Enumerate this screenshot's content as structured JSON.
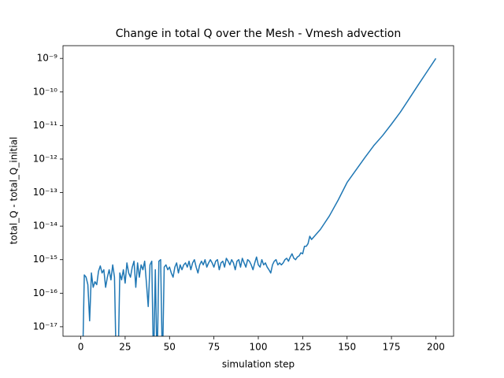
{
  "chart_data": {
    "type": "line",
    "title": "Change in total Q over the Mesh - Vmesh advection",
    "x_label": "simulation step",
    "y_label": "total_Q - total_Q_initial",
    "log_y": true,
    "grid": false,
    "xlim": [
      -10,
      210
    ],
    "xticks": [
      0,
      25,
      50,
      75,
      100,
      125,
      150,
      175,
      200
    ],
    "ylim": [
      5.2e-18,
      2.4e-09
    ],
    "yticks": [
      {
        "value": 1e-17,
        "label": "10⁻¹⁷"
      },
      {
        "value": 1e-16,
        "label": "10⁻¹⁶"
      },
      {
        "value": 1e-15,
        "label": "10⁻¹⁵"
      },
      {
        "value": 1e-14,
        "label": "10⁻¹⁴"
      },
      {
        "value": 1e-13,
        "label": "10⁻¹³"
      },
      {
        "value": 1e-12,
        "label": "10⁻¹²"
      },
      {
        "value": 1e-11,
        "label": "10⁻¹¹"
      },
      {
        "value": 1e-10,
        "label": "10⁻¹⁰"
      },
      {
        "value": 1e-09,
        "label": "10⁻⁹"
      }
    ],
    "x": [
      0,
      1,
      2,
      3,
      4,
      5,
      6,
      7,
      8,
      9,
      10,
      11,
      12,
      13,
      14,
      15,
      16,
      17,
      18,
      19,
      20,
      21,
      22,
      23,
      24,
      25,
      26,
      27,
      28,
      29,
      30,
      31,
      32,
      33,
      34,
      35,
      36,
      37,
      38,
      39,
      40,
      41,
      42,
      43,
      44,
      45,
      46,
      47,
      48,
      49,
      50,
      51,
      52,
      53,
      54,
      55,
      56,
      57,
      58,
      59,
      60,
      61,
      62,
      63,
      64,
      65,
      66,
      67,
      68,
      69,
      70,
      71,
      72,
      73,
      74,
      75,
      76,
      77,
      78,
      79,
      80,
      81,
      82,
      83,
      84,
      85,
      86,
      87,
      88,
      89,
      90,
      91,
      92,
      93,
      94,
      95,
      96,
      97,
      98,
      99,
      100,
      101,
      102,
      103,
      104,
      105,
      106,
      107,
      108,
      109,
      110,
      111,
      112,
      113,
      114,
      115,
      116,
      117,
      118,
      119,
      120,
      121,
      122,
      123,
      124,
      125,
      126,
      127,
      128,
      129,
      130,
      135,
      140,
      145,
      150,
      155,
      160,
      165,
      170,
      175,
      180,
      185,
      190,
      195,
      200
    ],
    "series": [
      {
        "color": "#1f77b4",
        "values": [
          0,
          0,
          3.5e-16,
          3e-16,
          1.8e-16,
          1.5e-17,
          4e-16,
          1.5e-16,
          2.2e-16,
          1.8e-16,
          4.5e-16,
          6.5e-16,
          4e-16,
          5e-16,
          1.5e-16,
          3e-16,
          5e-16,
          2.5e-16,
          7e-16,
          3e-16,
          0,
          0,
          4e-16,
          2.5e-16,
          5e-16,
          2e-16,
          8e-16,
          4e-16,
          3e-16,
          6e-16,
          9e-16,
          1.5e-16,
          8e-16,
          3e-16,
          7e-16,
          5e-16,
          9e-16,
          2e-16,
          4e-17,
          7e-16,
          9e-16,
          0,
          5e-16,
          0,
          9e-16,
          1e-15,
          0,
          6e-16,
          7e-16,
          5e-16,
          6e-16,
          4e-16,
          3e-16,
          6e-16,
          8e-16,
          4e-16,
          7e-16,
          5e-16,
          7e-16,
          8e-16,
          6e-16,
          9e-16,
          5e-16,
          8e-16,
          1e-15,
          6e-16,
          4e-16,
          7e-16,
          9e-16,
          7e-16,
          1e-15,
          6e-16,
          8e-16,
          1e-15,
          8e-16,
          6e-16,
          9e-16,
          1e-15,
          5e-16,
          8e-16,
          9e-16,
          6e-16,
          1.1e-15,
          9e-16,
          7e-16,
          1e-15,
          8e-16,
          5e-16,
          9e-16,
          1e-15,
          6e-16,
          1.1e-15,
          8e-16,
          6e-16,
          1e-15,
          9e-16,
          7e-16,
          5e-16,
          8e-16,
          1.2e-15,
          7e-16,
          6e-16,
          1e-15,
          7e-16,
          8e-16,
          6e-16,
          5e-16,
          4e-16,
          7e-16,
          9e-16,
          1e-15,
          7e-16,
          8e-16,
          7e-16,
          8e-16,
          1e-15,
          1.1e-15,
          9e-16,
          1.2e-15,
          1.5e-15,
          1.1e-15,
          1e-15,
          1.2e-15,
          1.3e-15,
          1.6e-15,
          1.5e-15,
          2.5e-15,
          2.5e-15,
          3e-15,
          5e-15,
          4e-15,
          8e-15,
          2e-14,
          6e-14,
          2e-13,
          4.7e-13,
          1.1e-12,
          2.5e-12,
          5e-12,
          1.1e-11,
          2.5e-11,
          6.3e-11,
          1.6e-10,
          4e-10,
          1e-09
        ]
      }
    ]
  }
}
